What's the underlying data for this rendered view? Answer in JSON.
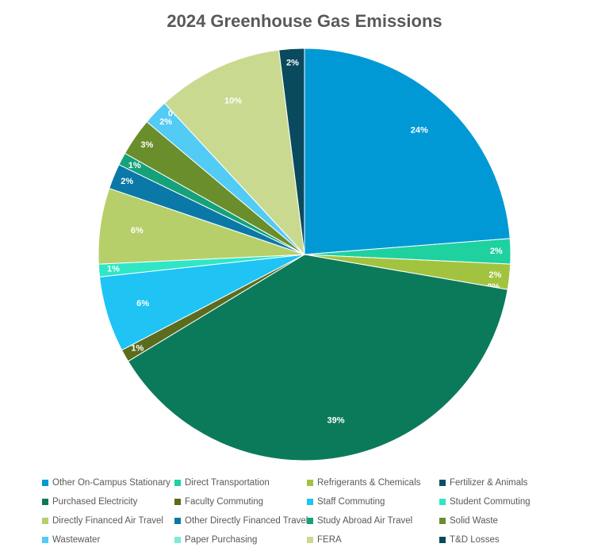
{
  "chart_data": {
    "type": "pie",
    "title": "2024 Greenhouse Gas Emissions",
    "categories": [
      "Other On-Campus Stationary",
      "Direct Transportation",
      "Refrigerants & Chemicals",
      "Fertilizer & Animals",
      "Purchased Electricity",
      "Faculty Commuting",
      "Staff Commuting",
      "Student Commuting",
      "Directly Financed Air Travel",
      "Other Directly Financed Travel",
      "Study Abroad Air Travel",
      "Solid Waste",
      "Wastewater",
      "Paper Purchasing",
      "FERA",
      "T&D Losses"
    ],
    "values": [
      24,
      2,
      2,
      0,
      39,
      1,
      6,
      1,
      6,
      2,
      1,
      3,
      2,
      0,
      10,
      2
    ],
    "value_labels": [
      "24%",
      "2%",
      "2%",
      "0%",
      "39%",
      "1%",
      "6%",
      "1%",
      "6%",
      "2%",
      "1%",
      "3%",
      "2%",
      "0%",
      "10%",
      "2%"
    ],
    "colors": [
      "#0099d6",
      "#1fd19f",
      "#a2c33f",
      "#0b4f69",
      "#0b7a5a",
      "#5b6c1f",
      "#1fc3f4",
      "#2fe6c6",
      "#b6cf6a",
      "#0a79a7",
      "#15a27a",
      "#6a8e2b",
      "#52cbf5",
      "#7fe8d8",
      "#c9da90",
      "#0a4a5e"
    ],
    "legend": "bottom"
  }
}
